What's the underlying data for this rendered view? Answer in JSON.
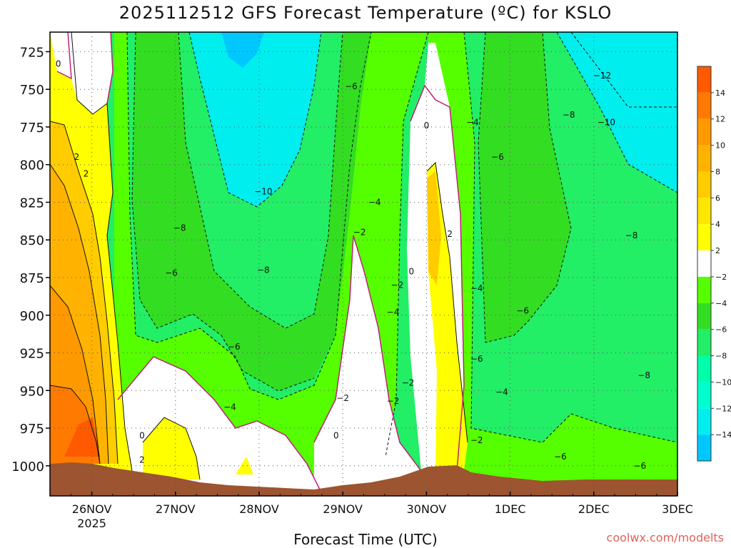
{
  "page": {
    "title": "2025112512 GFS Forecast Temperature (ºC) for KSLO",
    "xlabel": "Forecast Time (UTC)",
    "credit": "coolwx.com/modelts"
  },
  "chart_data": {
    "type": "heatmap",
    "title": "2025112512 GFS Forecast Temperature (ºC) for KSLO",
    "xlabel": "Forecast Time (UTC)",
    "ylabel": "",
    "x_ticks": [
      "26NOV",
      "27NOV",
      "28NOV",
      "29NOV",
      "30NOV",
      "1DEC",
      "2DEC",
      "3DEC"
    ],
    "x_tick_sub": {
      "26NOV": "2025"
    },
    "xlim_days": [
      25.5,
      33.0
    ],
    "y_ticks": [
      725,
      750,
      775,
      800,
      825,
      850,
      875,
      900,
      925,
      950,
      975,
      1000
    ],
    "ylim_hpa": [
      1020,
      712
    ],
    "colorbar": {
      "labels": [
        "14",
        "12",
        "10",
        "8",
        "6",
        "4",
        "2",
        "−2",
        "−4",
        "−6",
        "−8",
        "−10",
        "−12",
        "−14"
      ],
      "colors": [
        "#ff5a00",
        "#ff7a00",
        "#ff9900",
        "#ffb300",
        "#ffcc00",
        "#ffe600",
        "#ffff00",
        "#ffffff",
        "#55ff00",
        "#33dd22",
        "#22ee66",
        "#00ffaa",
        "#00ffcc",
        "#00eeee",
        "#00c8ff"
      ]
    },
    "contour_labels": [
      {
        "text": "0",
        "day": 25.6,
        "p": 733
      },
      {
        "text": "2",
        "day": 25.82,
        "p": 795
      },
      {
        "text": "2",
        "day": 25.93,
        "p": 806
      },
      {
        "text": "2",
        "day": 26.6,
        "p": 996
      },
      {
        "text": "0",
        "day": 26.6,
        "p": 980
      },
      {
        "text": "−8",
        "day": 27.05,
        "p": 842
      },
      {
        "text": "−6",
        "day": 26.95,
        "p": 872
      },
      {
        "text": "−6",
        "day": 27.7,
        "p": 921
      },
      {
        "text": "−4",
        "day": 27.65,
        "p": 961
      },
      {
        "text": "−10",
        "day": 28.05,
        "p": 818
      },
      {
        "text": "−8",
        "day": 28.05,
        "p": 870
      },
      {
        "text": "−6",
        "day": 29.1,
        "p": 748
      },
      {
        "text": "−4",
        "day": 29.38,
        "p": 825
      },
      {
        "text": "−2",
        "day": 29.2,
        "p": 845
      },
      {
        "text": "−2",
        "day": 29.65,
        "p": 880
      },
      {
        "text": "−4",
        "day": 29.6,
        "p": 898
      },
      {
        "text": "−2",
        "day": 29.0,
        "p": 955
      },
      {
        "text": "0",
        "day": 28.92,
        "p": 980
      },
      {
        "text": "−2",
        "day": 29.78,
        "p": 945
      },
      {
        "text": "−2",
        "day": 29.6,
        "p": 957
      },
      {
        "text": "0",
        "day": 30.0,
        "p": 774
      },
      {
        "text": "0",
        "day": 29.82,
        "p": 871
      },
      {
        "text": "2",
        "day": 30.28,
        "p": 846
      },
      {
        "text": "−4",
        "day": 30.55,
        "p": 772
      },
      {
        "text": "−6",
        "day": 30.85,
        "p": 795
      },
      {
        "text": "−4",
        "day": 30.6,
        "p": 882
      },
      {
        "text": "−6",
        "day": 31.15,
        "p": 897
      },
      {
        "text": "−6",
        "day": 30.6,
        "p": 929
      },
      {
        "text": "−4",
        "day": 30.9,
        "p": 951
      },
      {
        "text": "−2",
        "day": 30.6,
        "p": 983
      },
      {
        "text": "−8",
        "day": 31.7,
        "p": 767
      },
      {
        "text": "−12",
        "day": 32.1,
        "p": 741
      },
      {
        "text": "−10",
        "day": 32.15,
        "p": 772
      },
      {
        "text": "−8",
        "day": 32.45,
        "p": 847
      },
      {
        "text": "−8",
        "day": 32.6,
        "p": 940
      },
      {
        "text": "−6",
        "day": 31.6,
        "p": 994
      },
      {
        "text": "−6",
        "day": 32.55,
        "p": 1000
      }
    ]
  }
}
